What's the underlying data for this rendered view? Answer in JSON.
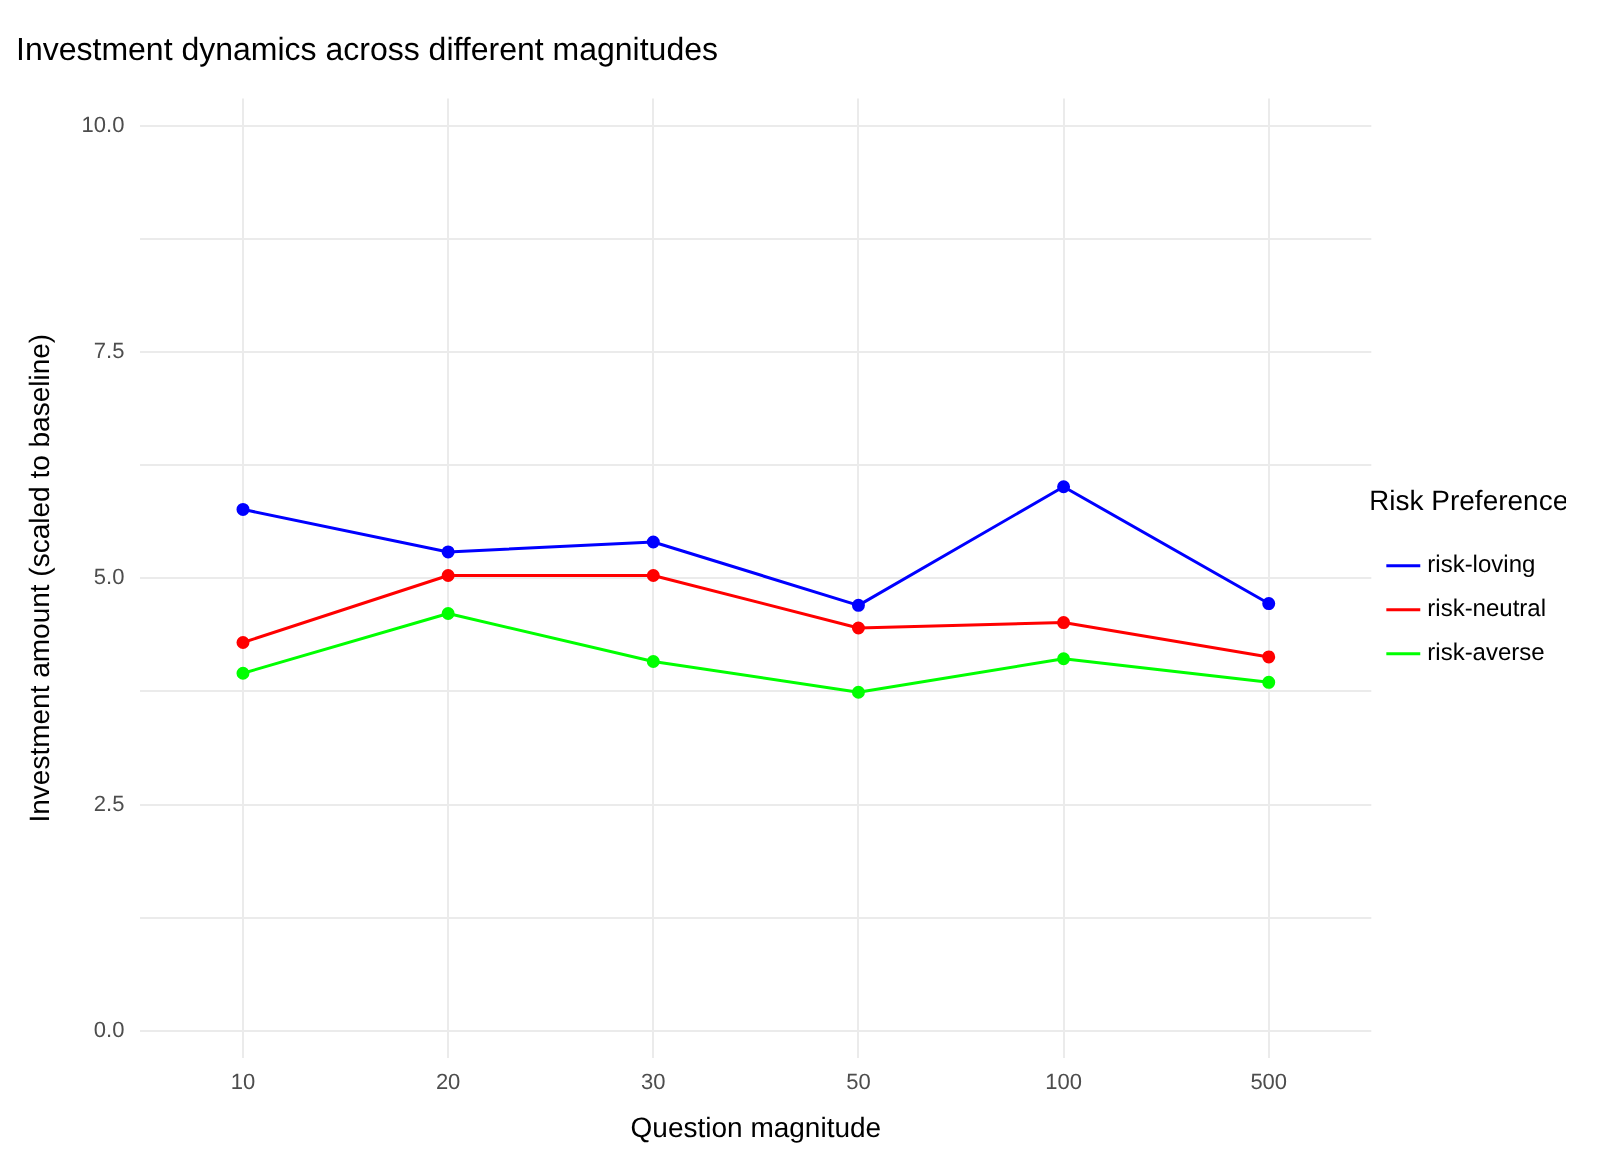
{
  "chart_data": {
    "type": "line",
    "title": "Investment dynamics across different magnitudes",
    "xlabel": "Question magnitude",
    "ylabel": "Investment amount (scaled to baseline)",
    "legend_title": "Risk Preference",
    "categories": [
      "10",
      "20",
      "30",
      "50",
      "100",
      "500"
    ],
    "series": [
      {
        "name": "risk-loving",
        "color": "#0000ff",
        "values": [
          5.76,
          5.29,
          5.4,
          4.7,
          6.01,
          4.72
        ]
      },
      {
        "name": "risk-neutral",
        "color": "#ff0000",
        "values": [
          4.29,
          5.03,
          5.03,
          4.45,
          4.51,
          4.13
        ]
      },
      {
        "name": "risk-averse",
        "color": "#00ff00",
        "values": [
          3.95,
          4.61,
          4.08,
          3.74,
          4.11,
          3.85
        ]
      }
    ],
    "ylim": [
      -0.3,
      10.3
    ],
    "yticks": [
      {
        "value": 0,
        "label": "0.0"
      },
      {
        "value": 1.25,
        "label": null
      },
      2.5,
      {
        "value": 3.75,
        "label": null
      },
      {
        "value": 5,
        "label": "5.0"
      },
      {
        "value": 6.25,
        "label": null
      },
      7.5,
      {
        "value": 8.75,
        "label": null
      },
      {
        "value": 10,
        "label": "10.0"
      }
    ],
    "grid": true,
    "legend": "right",
    "marker": "circle",
    "line_style": "solid"
  }
}
